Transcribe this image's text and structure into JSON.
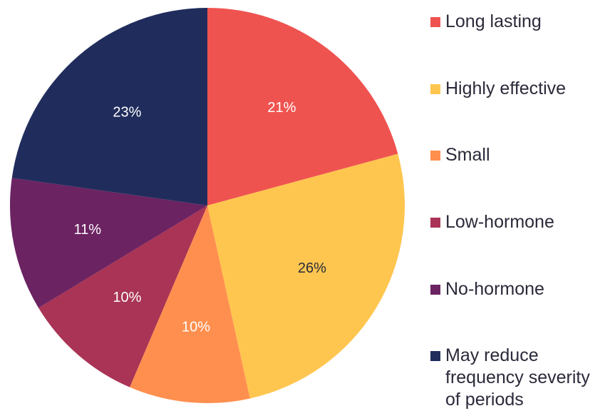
{
  "chart_data": {
    "type": "pie",
    "categories": [
      "Long lasting",
      "Highly effective",
      "Small",
      "Low-hormone",
      "No-hormone",
      "May reduce frequency severity of periods"
    ],
    "values": [
      21,
      26,
      10,
      10,
      11,
      23
    ],
    "value_labels": [
      "21%",
      "26%",
      "10%",
      "10%",
      "11%",
      "23%"
    ],
    "colors": [
      "#ef5350",
      "#ffc64f",
      "#ff8f4f",
      "#a93455",
      "#6b2362",
      "#202d5c"
    ]
  }
}
